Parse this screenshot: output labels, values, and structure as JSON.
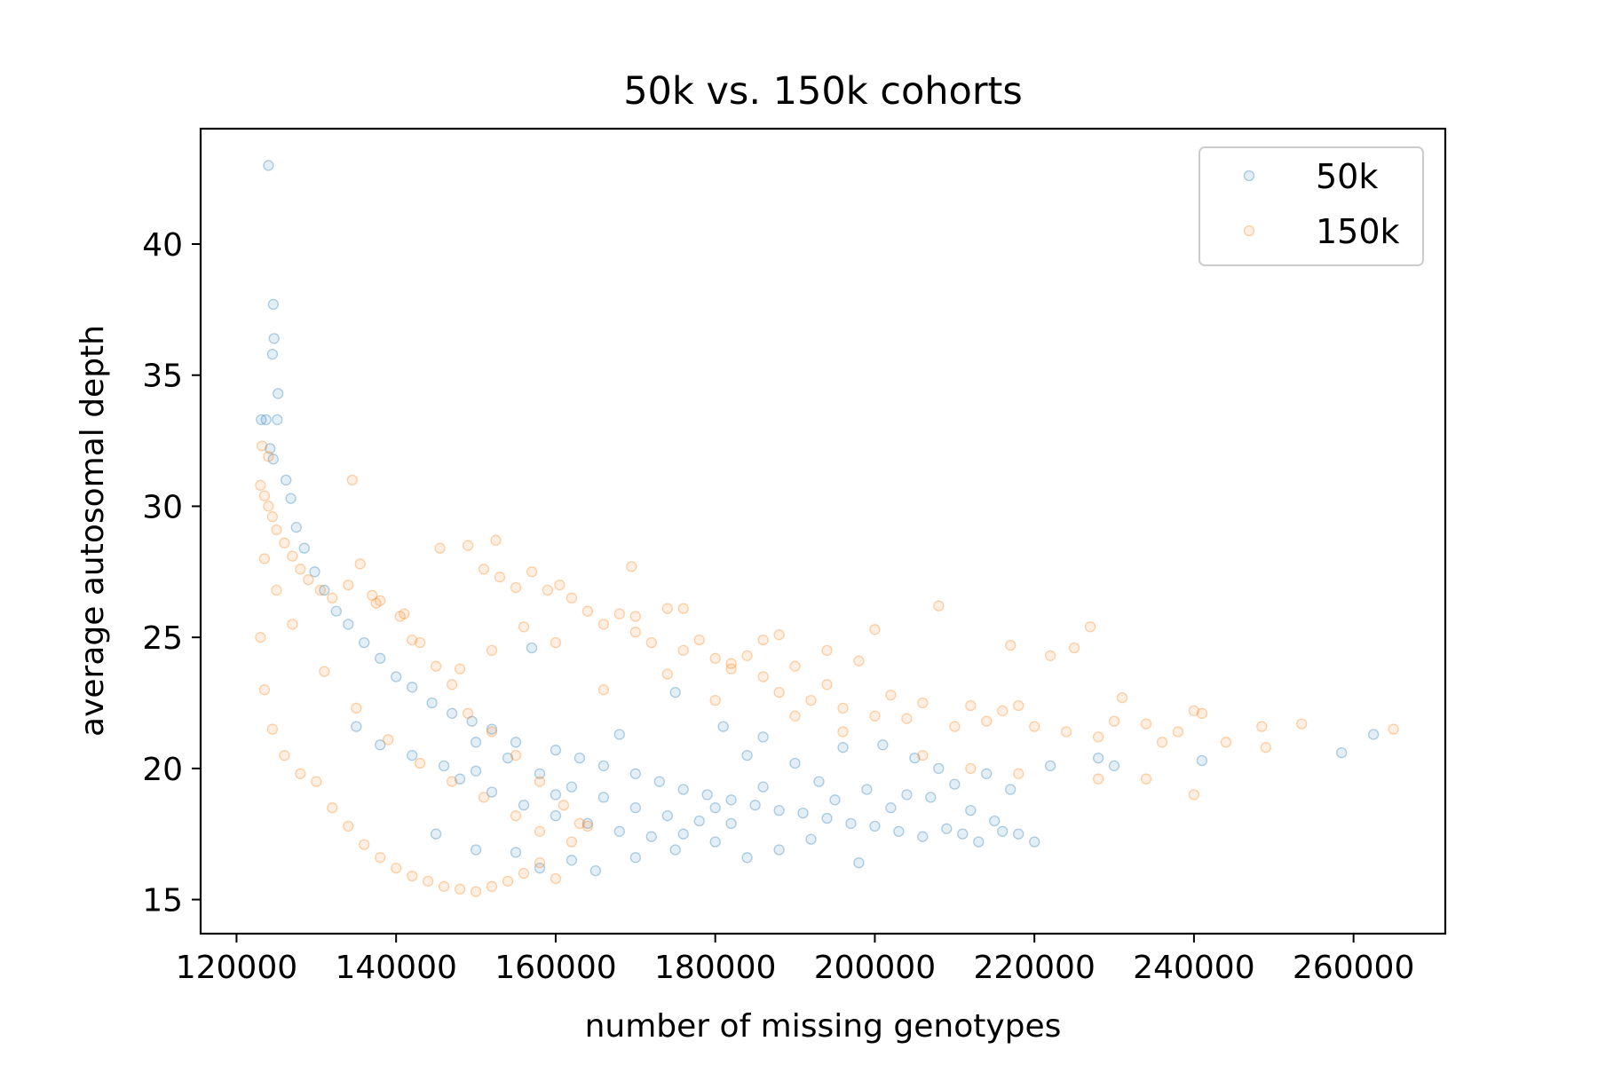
{
  "chart_data": {
    "type": "scatter",
    "title": "50k vs. 150k cohorts",
    "xlabel": "number of missing genotypes",
    "ylabel": "average autosomal depth",
    "xlim": [
      115500,
      271500
    ],
    "ylim": [
      13.7,
      44.4
    ],
    "xticks": [
      120000,
      140000,
      160000,
      180000,
      200000,
      220000,
      240000,
      260000
    ],
    "xtick_labels": [
      "120000",
      "140000",
      "160000",
      "180000",
      "200000",
      "220000",
      "240000",
      "260000"
    ],
    "yticks": [
      15,
      20,
      25,
      30,
      35,
      40
    ],
    "ytick_labels": [
      "15",
      "20",
      "25",
      "30",
      "35",
      "40"
    ],
    "grid": false,
    "legend": {
      "position": "top-right"
    },
    "marker_opacity": 0.12,
    "series": [
      {
        "name": "50k",
        "color": "#1f77b4",
        "points": [
          [
            124000,
            43.0
          ],
          [
            124600,
            37.7
          ],
          [
            124700,
            36.4
          ],
          [
            124500,
            35.8
          ],
          [
            125200,
            34.3
          ],
          [
            123100,
            33.3
          ],
          [
            123700,
            33.3
          ],
          [
            125100,
            33.3
          ],
          [
            124200,
            32.2
          ],
          [
            124600,
            31.8
          ],
          [
            126200,
            31.0
          ],
          [
            126800,
            30.3
          ],
          [
            127500,
            29.2
          ],
          [
            128500,
            28.4
          ],
          [
            129800,
            27.5
          ],
          [
            131000,
            26.8
          ],
          [
            132500,
            26.0
          ],
          [
            134000,
            25.5
          ],
          [
            136000,
            24.8
          ],
          [
            138000,
            24.2
          ],
          [
            140000,
            23.5
          ],
          [
            142000,
            23.1
          ],
          [
            144500,
            22.5
          ],
          [
            147000,
            22.1
          ],
          [
            149500,
            21.8
          ],
          [
            152000,
            21.5
          ],
          [
            155000,
            21.0
          ],
          [
            157000,
            24.6
          ],
          [
            160000,
            20.7
          ],
          [
            163000,
            20.4
          ],
          [
            166000,
            20.1
          ],
          [
            168000,
            21.3
          ],
          [
            170000,
            19.8
          ],
          [
            173000,
            19.5
          ],
          [
            175000,
            22.9
          ],
          [
            176000,
            19.2
          ],
          [
            179000,
            19.0
          ],
          [
            181000,
            21.6
          ],
          [
            182000,
            18.8
          ],
          [
            184000,
            20.5
          ],
          [
            185000,
            18.6
          ],
          [
            186000,
            21.2
          ],
          [
            188000,
            18.4
          ],
          [
            190000,
            20.2
          ],
          [
            191000,
            18.3
          ],
          [
            193000,
            19.5
          ],
          [
            194000,
            18.1
          ],
          [
            195000,
            18.8
          ],
          [
            196000,
            20.8
          ],
          [
            197000,
            17.9
          ],
          [
            198000,
            16.4
          ],
          [
            199000,
            19.2
          ],
          [
            200000,
            17.8
          ],
          [
            201000,
            20.9
          ],
          [
            202000,
            18.5
          ],
          [
            203000,
            17.6
          ],
          [
            204000,
            19.0
          ],
          [
            205000,
            20.4
          ],
          [
            206000,
            17.4
          ],
          [
            207000,
            18.9
          ],
          [
            208000,
            20.0
          ],
          [
            209000,
            17.7
          ],
          [
            210000,
            19.4
          ],
          [
            211000,
            17.5
          ],
          [
            212000,
            18.4
          ],
          [
            213000,
            17.2
          ],
          [
            214000,
            19.8
          ],
          [
            215000,
            18.0
          ],
          [
            216000,
            17.6
          ],
          [
            217000,
            19.2
          ],
          [
            218000,
            17.5
          ],
          [
            220000,
            17.2
          ],
          [
            222000,
            20.1
          ],
          [
            228000,
            20.4
          ],
          [
            230000,
            20.1
          ],
          [
            241000,
            20.3
          ],
          [
            258500,
            20.6
          ],
          [
            262500,
            21.3
          ],
          [
            145000,
            17.5
          ],
          [
            150000,
            16.9
          ],
          [
            155000,
            16.8
          ],
          [
            158000,
            16.2
          ],
          [
            162000,
            16.5
          ],
          [
            165000,
            16.1
          ],
          [
            170000,
            16.6
          ],
          [
            175000,
            16.9
          ],
          [
            180000,
            17.2
          ],
          [
            184000,
            16.6
          ],
          [
            188000,
            16.9
          ],
          [
            192000,
            17.3
          ],
          [
            148000,
            19.6
          ],
          [
            152000,
            19.1
          ],
          [
            156000,
            18.6
          ],
          [
            160000,
            18.2
          ],
          [
            164000,
            17.9
          ],
          [
            168000,
            17.6
          ],
          [
            172000,
            17.4
          ],
          [
            176000,
            17.5
          ],
          [
            180000,
            18.5
          ],
          [
            186000,
            19.3
          ],
          [
            135000,
            21.6
          ],
          [
            138000,
            20.9
          ],
          [
            142000,
            20.5
          ],
          [
            146000,
            20.1
          ],
          [
            150000,
            19.9
          ],
          [
            154000,
            20.4
          ],
          [
            158000,
            19.8
          ],
          [
            162000,
            19.3
          ],
          [
            166000,
            18.9
          ],
          [
            170000,
            18.5
          ],
          [
            174000,
            18.2
          ],
          [
            178000,
            18.0
          ],
          [
            182000,
            17.9
          ],
          [
            150000,
            21.0
          ],
          [
            160000,
            19.0
          ]
        ]
      },
      {
        "name": "150k",
        "color": "#ff7f0e",
        "points": [
          [
            123000,
            30.8
          ],
          [
            123500,
            30.4
          ],
          [
            124000,
            30.0
          ],
          [
            124500,
            29.6
          ],
          [
            125000,
            29.1
          ],
          [
            123200,
            32.3
          ],
          [
            124000,
            31.9
          ],
          [
            134500,
            31.0
          ],
          [
            126000,
            28.6
          ],
          [
            127000,
            28.1
          ],
          [
            128000,
            27.6
          ],
          [
            129000,
            27.2
          ],
          [
            130500,
            26.8
          ],
          [
            132000,
            26.5
          ],
          [
            134000,
            27.0
          ],
          [
            135500,
            27.8
          ],
          [
            137000,
            26.6
          ],
          [
            138000,
            26.4
          ],
          [
            140500,
            25.8
          ],
          [
            142000,
            24.9
          ],
          [
            145500,
            28.4
          ],
          [
            149000,
            28.5
          ],
          [
            152500,
            28.7
          ],
          [
            151000,
            27.6
          ],
          [
            153000,
            27.3
          ],
          [
            155000,
            26.9
          ],
          [
            157000,
            27.5
          ],
          [
            159000,
            26.8
          ],
          [
            160500,
            27.0
          ],
          [
            162000,
            26.5
          ],
          [
            164000,
            26.0
          ],
          [
            166000,
            25.5
          ],
          [
            168000,
            25.9
          ],
          [
            169500,
            27.7
          ],
          [
            170000,
            25.2
          ],
          [
            172000,
            24.8
          ],
          [
            174000,
            26.1
          ],
          [
            176000,
            24.5
          ],
          [
            178000,
            24.9
          ],
          [
            180000,
            24.2
          ],
          [
            182000,
            23.8
          ],
          [
            184000,
            24.3
          ],
          [
            186000,
            23.5
          ],
          [
            188000,
            22.9
          ],
          [
            190000,
            23.9
          ],
          [
            192000,
            22.6
          ],
          [
            194000,
            23.2
          ],
          [
            196000,
            22.3
          ],
          [
            198000,
            24.1
          ],
          [
            200000,
            22.0
          ],
          [
            200000,
            25.3
          ],
          [
            202000,
            22.8
          ],
          [
            204000,
            21.9
          ],
          [
            206000,
            22.5
          ],
          [
            208000,
            26.2
          ],
          [
            210000,
            21.6
          ],
          [
            212000,
            22.4
          ],
          [
            214000,
            21.8
          ],
          [
            216000,
            22.2
          ],
          [
            217000,
            24.7
          ],
          [
            218000,
            22.4
          ],
          [
            220000,
            21.6
          ],
          [
            222000,
            24.3
          ],
          [
            224000,
            21.4
          ],
          [
            225000,
            24.6
          ],
          [
            227000,
            25.4
          ],
          [
            228000,
            21.2
          ],
          [
            230000,
            21.8
          ],
          [
            231000,
            22.7
          ],
          [
            234000,
            21.7
          ],
          [
            236000,
            21.0
          ],
          [
            238000,
            21.4
          ],
          [
            240000,
            22.2
          ],
          [
            241000,
            22.1
          ],
          [
            244000,
            21.0
          ],
          [
            248500,
            21.6
          ],
          [
            249000,
            20.8
          ],
          [
            253500,
            21.7
          ],
          [
            265000,
            21.5
          ],
          [
            240000,
            19.0
          ],
          [
            234000,
            19.6
          ],
          [
            228000,
            19.6
          ],
          [
            212000,
            20.0
          ],
          [
            218000,
            19.8
          ],
          [
            206000,
            20.5
          ],
          [
            196000,
            21.4
          ],
          [
            190000,
            22.0
          ],
          [
            186000,
            24.9
          ],
          [
            180000,
            22.6
          ],
          [
            174000,
            23.6
          ],
          [
            166000,
            23.0
          ],
          [
            160000,
            24.8
          ],
          [
            156000,
            25.4
          ],
          [
            152000,
            24.5
          ],
          [
            148000,
            23.8
          ],
          [
            170000,
            25.8
          ],
          [
            176000,
            26.1
          ],
          [
            182000,
            24.0
          ],
          [
            188000,
            25.1
          ],
          [
            194000,
            24.5
          ],
          [
            130000,
            19.5
          ],
          [
            132000,
            18.5
          ],
          [
            134000,
            17.8
          ],
          [
            136000,
            17.1
          ],
          [
            138000,
            16.6
          ],
          [
            140000,
            16.2
          ],
          [
            142000,
            15.9
          ],
          [
            144000,
            15.7
          ],
          [
            146000,
            15.5
          ],
          [
            148000,
            15.4
          ],
          [
            150000,
            15.3
          ],
          [
            152000,
            15.5
          ],
          [
            154000,
            15.7
          ],
          [
            156000,
            16.0
          ],
          [
            158000,
            16.4
          ],
          [
            160000,
            15.8
          ],
          [
            162000,
            17.2
          ],
          [
            164000,
            17.8
          ],
          [
            158000,
            17.6
          ],
          [
            155000,
            18.2
          ],
          [
            151000,
            18.9
          ],
          [
            147000,
            19.5
          ],
          [
            143000,
            20.2
          ],
          [
            139000,
            21.1
          ],
          [
            135000,
            22.3
          ],
          [
            131000,
            23.7
          ],
          [
            127000,
            25.5
          ],
          [
            125000,
            26.8
          ],
          [
            123500,
            28.0
          ],
          [
            123000,
            25.0
          ],
          [
            123500,
            23.0
          ],
          [
            124500,
            21.5
          ],
          [
            126000,
            20.5
          ],
          [
            128000,
            19.8
          ],
          [
            137500,
            26.3
          ],
          [
            141000,
            25.9
          ],
          [
            143000,
            24.8
          ],
          [
            145000,
            23.9
          ],
          [
            147000,
            23.2
          ],
          [
            149000,
            22.1
          ],
          [
            152000,
            21.4
          ],
          [
            155000,
            20.5
          ],
          [
            158000,
            19.5
          ],
          [
            161000,
            18.6
          ],
          [
            163000,
            17.9
          ]
        ]
      }
    ]
  }
}
